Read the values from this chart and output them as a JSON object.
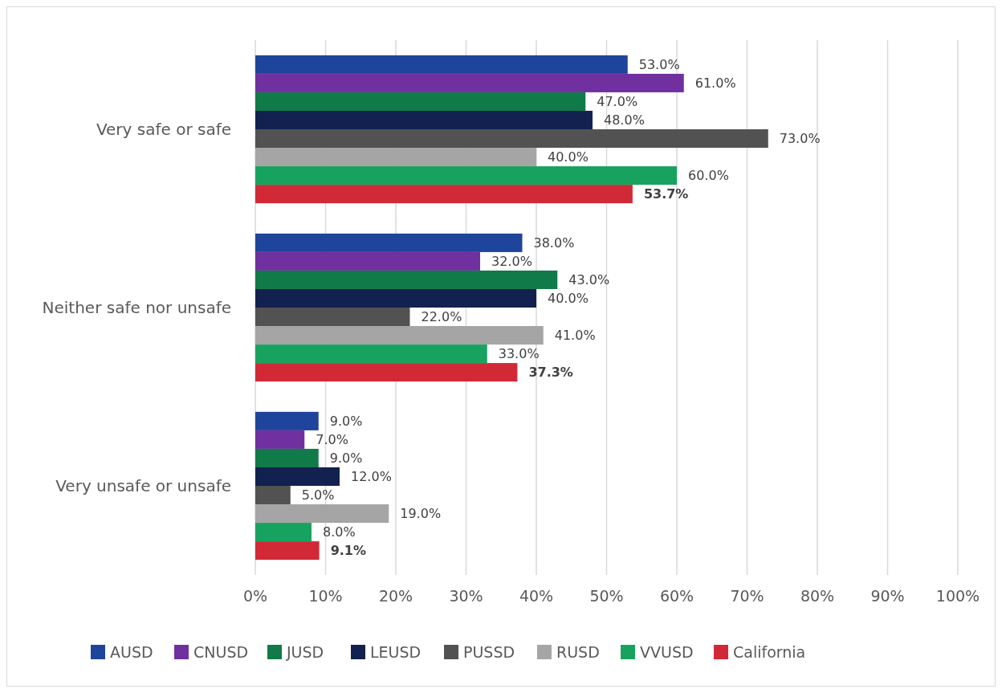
{
  "chart_data": {
    "type": "bar",
    "orientation": "horizontal",
    "categories": [
      "Very safe or safe",
      "Neither safe nor unsafe",
      "Very unsafe or unsafe"
    ],
    "series": [
      {
        "name": "AUSD",
        "color": "#1f449c",
        "values": [
          53,
          38,
          9
        ],
        "value_labels": [
          "53.0%",
          "38.0%",
          "9.0%"
        ]
      },
      {
        "name": "CNUSD",
        "color": "#7030a0",
        "values": [
          61,
          32,
          7
        ],
        "value_labels": [
          "61.0%",
          "32.0%",
          "7.0%"
        ]
      },
      {
        "name": "JUSD",
        "color": "#107a48",
        "values": [
          47,
          43,
          9
        ],
        "value_labels": [
          "47.0%",
          "43.0%",
          "9.0%"
        ]
      },
      {
        "name": "LEUSD",
        "color": "#12214f",
        "values": [
          48,
          40,
          12
        ],
        "value_labels": [
          "48.0%",
          "40.0%",
          "12.0%"
        ]
      },
      {
        "name": "PUSSD",
        "color": "#525252",
        "values": [
          73,
          22,
          5
        ],
        "value_labels": [
          "73.0%",
          "22.0%",
          "5.0%"
        ]
      },
      {
        "name": "RUSD",
        "color": "#a5a5a5",
        "values": [
          40,
          41,
          19
        ],
        "value_labels": [
          "40.0%",
          "41.0%",
          "19.0%"
        ]
      },
      {
        "name": "VVUSD",
        "color": "#17a35f",
        "values": [
          60,
          33,
          8
        ],
        "value_labels": [
          "60.0%",
          "33.0%",
          "8.0%"
        ]
      },
      {
        "name": "California",
        "color": "#d12a36",
        "values": [
          53.7,
          37.3,
          9.1
        ],
        "value_labels": [
          "53.7%",
          "37.3%",
          "9.1%"
        ]
      }
    ],
    "xlim": [
      0,
      100
    ],
    "xticks": [
      {
        "value": 0,
        "label": "0%"
      },
      {
        "value": 10,
        "label": "10%"
      },
      {
        "value": 20,
        "label": "20%"
      },
      {
        "value": 30,
        "label": "30%"
      },
      {
        "value": 40,
        "label": "40%"
      },
      {
        "value": 50,
        "label": "50%"
      },
      {
        "value": 60,
        "label": "60%"
      },
      {
        "value": 70,
        "label": "70%"
      },
      {
        "value": 80,
        "label": "80%"
      },
      {
        "value": 90,
        "label": "90%"
      },
      {
        "value": 100,
        "label": "100%"
      }
    ],
    "grid": "x",
    "legend": "bottom"
  }
}
